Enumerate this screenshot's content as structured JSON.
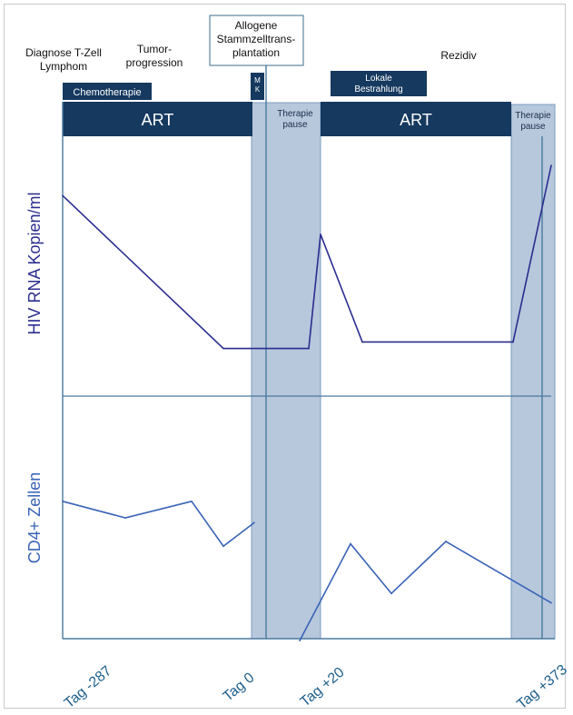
{
  "chart_data": {
    "type": "line",
    "title": "",
    "events": [
      {
        "id": "diagnose",
        "lines": [
          "Diagnose T-Zell",
          "Lymphom"
        ],
        "boxed": false
      },
      {
        "id": "tumor",
        "lines": [
          "Tumor-",
          "progression"
        ],
        "boxed": false
      },
      {
        "id": "transplant",
        "lines": [
          "Allogene",
          "Stammzelltrans-",
          "plantation"
        ],
        "boxed": true
      },
      {
        "id": "rezidiv",
        "lines": [
          "Rezidiv"
        ],
        "boxed": false
      }
    ],
    "therapy_bars": [
      {
        "id": "chemo",
        "lines": [
          "Chemotherapie"
        ]
      },
      {
        "id": "mk",
        "lines": [
          "M",
          "K"
        ]
      },
      {
        "id": "bestrahlung",
        "lines": [
          "Lokale",
          "Bestrahlung"
        ]
      }
    ],
    "art_segments": [
      {
        "id": "art1",
        "label": "ART"
      },
      {
        "id": "art2",
        "label": "ART"
      }
    ],
    "pauses": [
      {
        "id": "pause1",
        "lines": [
          "Therapie",
          "pause"
        ]
      },
      {
        "id": "pause2",
        "lines": [
          "Therapie",
          "pause"
        ]
      }
    ],
    "x_ticks": [
      "Tag -287",
      "Tag 0",
      "Tag +20",
      "Tag +373"
    ],
    "series": [
      {
        "name": "HIV RNA Kopien/ml",
        "color": "#2b2d8e",
        "y": [
          0.83,
          0.12,
          0.12,
          0.12,
          0.65,
          0.15,
          0.15,
          0.97
        ]
      },
      {
        "name": "CD4+ Zellen",
        "color": "#3a63b7",
        "segments": [
          [
            0.57,
            0.5,
            0.57,
            0.38,
            0.48
          ],
          [
            -0.02,
            0.39,
            0.18,
            0.4,
            0.14
          ]
        ]
      }
    ],
    "colors": {
      "dark_bar": "#15395f",
      "pause_fill": "#b7c7dc",
      "pause_border": "#7c9dbf",
      "axis_line": "#4a7a9e",
      "frame": "#c9c9c9",
      "tick_text": "#1f5f8b"
    },
    "grid": false,
    "legend": "none"
  }
}
